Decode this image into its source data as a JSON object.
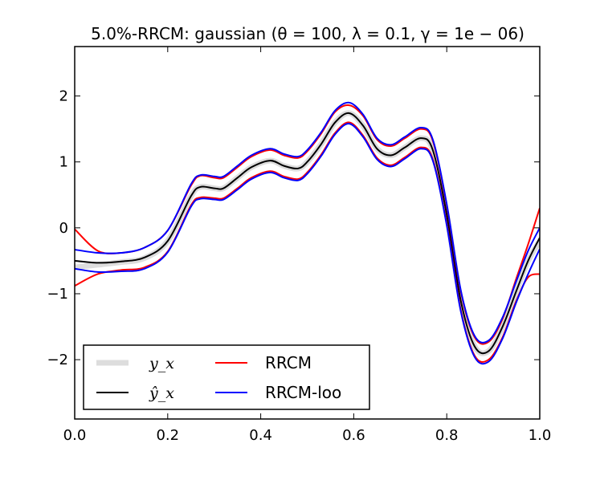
{
  "chart_data": {
    "type": "line",
    "title": "5.0%-RRCM: gaussian (θ = 100, λ = 0.1, γ = 1e − 06)",
    "xlabel": "",
    "ylabel": "",
    "xlim": [
      0.0,
      1.0
    ],
    "ylim": [
      -2.9,
      2.75
    ],
    "grid": false,
    "legend_position": "lower-left",
    "xticks": [
      0.0,
      0.2,
      0.4,
      0.6,
      0.8,
      1.0
    ],
    "xtick_labels": [
      "0.0",
      "0.2",
      "0.4",
      "0.6",
      "0.8",
      "1.0"
    ],
    "yticks": [
      -2,
      -1,
      0,
      1,
      2
    ],
    "ytick_labels": [
      "−2",
      "−1",
      "0",
      "1",
      "2"
    ],
    "x": [
      0.0,
      0.05,
      0.1,
      0.15,
      0.2,
      0.25,
      0.27,
      0.3,
      0.32,
      0.35,
      0.38,
      0.42,
      0.45,
      0.48,
      0.5,
      0.53,
      0.56,
      0.59,
      0.62,
      0.65,
      0.68,
      0.71,
      0.745,
      0.77,
      0.8,
      0.83,
      0.86,
      0.89,
      0.92,
      0.95,
      0.975,
      1.0
    ],
    "series": [
      {
        "name": "y_x",
        "label_math": "y_x",
        "color": "#dddddd",
        "width": 7,
        "values": [
          -0.6,
          -0.56,
          -0.52,
          -0.46,
          -0.2,
          0.48,
          0.62,
          0.6,
          0.6,
          0.76,
          0.92,
          1.02,
          0.94,
          0.9,
          1.0,
          1.27,
          1.6,
          1.74,
          1.55,
          1.2,
          1.1,
          1.22,
          1.36,
          1.18,
          0.2,
          -1.1,
          -1.8,
          -1.87,
          -1.5,
          -0.95,
          -0.5,
          -0.2
        ]
      },
      {
        "name": "ŷ_x",
        "label_math": "ŷ_x",
        "color": "#000000",
        "width": 2,
        "values": [
          -0.5,
          -0.53,
          -0.51,
          -0.45,
          -0.2,
          0.48,
          0.62,
          0.6,
          0.6,
          0.76,
          0.92,
          1.02,
          0.94,
          0.9,
          1.0,
          1.27,
          1.6,
          1.74,
          1.55,
          1.2,
          1.1,
          1.22,
          1.36,
          1.18,
          0.2,
          -1.1,
          -1.8,
          -1.87,
          -1.5,
          -0.95,
          -0.5,
          -0.15
        ]
      },
      {
        "name": "RRCM upper",
        "color": "#ff0000",
        "width": 2,
        "legend": false,
        "values": [
          -0.02,
          -0.35,
          -0.38,
          -0.3,
          -0.04,
          0.64,
          0.79,
          0.76,
          0.76,
          0.92,
          1.08,
          1.18,
          1.1,
          1.06,
          1.16,
          1.43,
          1.76,
          1.86,
          1.7,
          1.34,
          1.24,
          1.36,
          1.5,
          1.32,
          0.34,
          -0.96,
          -1.66,
          -1.73,
          -1.38,
          -0.76,
          -0.25,
          0.3
        ]
      },
      {
        "name": "RRCM lower",
        "color": "#ff0000",
        "width": 2,
        "legend": false,
        "values": [
          -0.88,
          -0.7,
          -0.64,
          -0.6,
          -0.36,
          0.34,
          0.46,
          0.45,
          0.45,
          0.6,
          0.76,
          0.86,
          0.78,
          0.74,
          0.84,
          1.11,
          1.44,
          1.6,
          1.4,
          1.06,
          0.95,
          1.07,
          1.22,
          1.04,
          0.06,
          -1.24,
          -1.94,
          -2.0,
          -1.66,
          -1.1,
          -0.75,
          -0.7
        ]
      },
      {
        "name": "RRCM-loo upper",
        "color": "#0000ff",
        "width": 2,
        "legend": false,
        "values": [
          -0.33,
          -0.38,
          -0.38,
          -0.3,
          -0.04,
          0.66,
          0.8,
          0.78,
          0.78,
          0.94,
          1.1,
          1.2,
          1.12,
          1.08,
          1.18,
          1.45,
          1.78,
          1.9,
          1.72,
          1.36,
          1.26,
          1.38,
          1.52,
          1.34,
          0.36,
          -0.94,
          -1.64,
          -1.71,
          -1.36,
          -0.8,
          -0.35,
          0.0
        ]
      },
      {
        "name": "RRCM-loo lower",
        "color": "#0000ff",
        "width": 2,
        "legend": false,
        "values": [
          -0.62,
          -0.67,
          -0.66,
          -0.62,
          -0.37,
          0.32,
          0.44,
          0.43,
          0.43,
          0.58,
          0.74,
          0.84,
          0.76,
          0.72,
          0.82,
          1.09,
          1.42,
          1.58,
          1.38,
          1.04,
          0.93,
          1.05,
          1.2,
          1.02,
          0.04,
          -1.26,
          -1.96,
          -2.03,
          -1.68,
          -1.12,
          -0.7,
          -0.32
        ]
      }
    ],
    "legend": [
      {
        "label": "y_x",
        "color": "#dddddd",
        "width": 7,
        "math": true
      },
      {
        "label": "ŷ_x",
        "color": "#000000",
        "width": 2,
        "math": true
      },
      {
        "label": "RRCM",
        "color": "#ff0000",
        "width": 2,
        "math": false
      },
      {
        "label": "RRCM-loo",
        "color": "#0000ff",
        "width": 2,
        "math": false
      }
    ]
  }
}
